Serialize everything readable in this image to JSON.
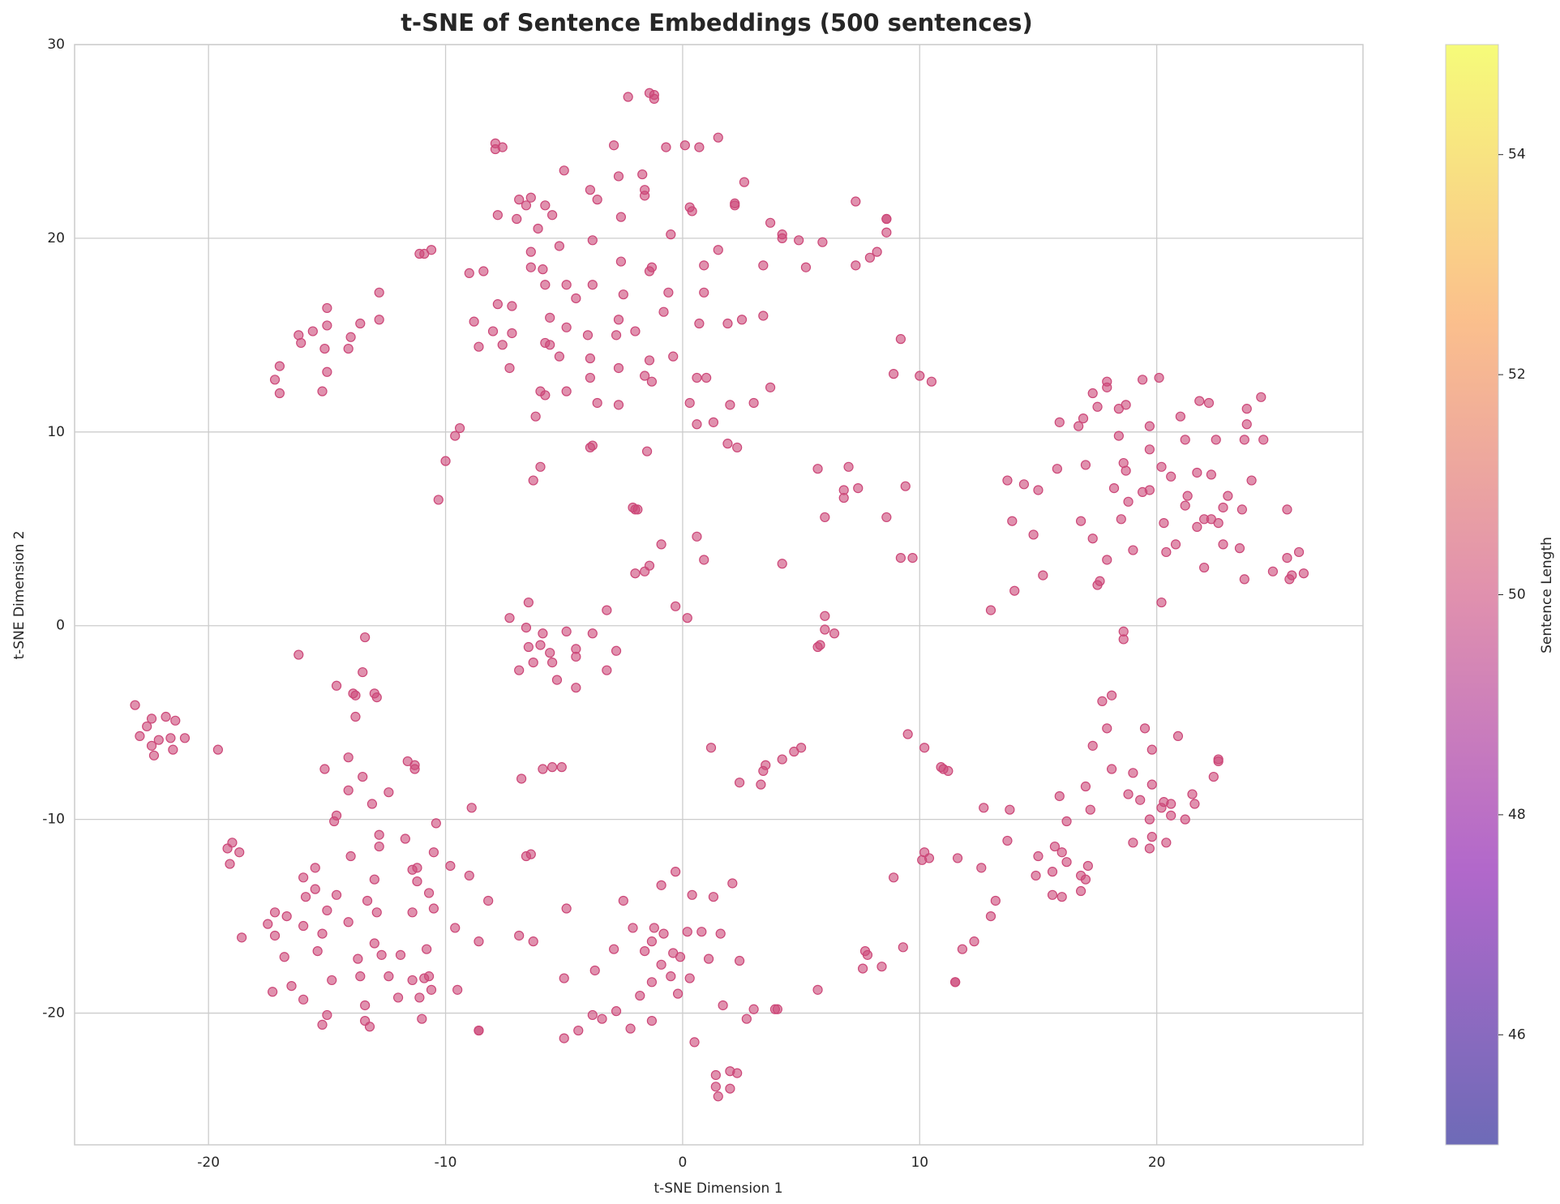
{
  "chart_data": {
    "type": "scatter",
    "title": "t-SNE of Sentence Embeddings (500 sentences)",
    "x_label": "t-SNE Dimension 1",
    "y_label": "t-SNE Dimension 2",
    "color": "#cc4778",
    "grid": true,
    "xlim": [
      -25.65,
      28.7
    ],
    "ylim": [
      -26.8,
      30
    ],
    "xticks": [
      -20,
      -10,
      0,
      10,
      20
    ],
    "yticks": [
      -20,
      -10,
      0,
      10,
      20,
      30
    ],
    "colorbar": {
      "label": "Sentence Length",
      "lim": [
        45,
        55
      ],
      "ticks": [
        46,
        48,
        50,
        52,
        54
      ],
      "colormap": "plasma"
    },
    "x": [
      -1.4,
      -1.2,
      -1.2,
      -2.3,
      -2.9,
      -0.7,
      0.1,
      0.7,
      1.5,
      -7.9,
      -7.9,
      -7.6,
      -5,
      -1.7,
      -2.7,
      2.6,
      -3.9,
      -1.6,
      -1.6,
      -3.6,
      -6.9,
      -6.6,
      -6.4,
      -5.8,
      -5.5,
      -7.0,
      -7.8,
      -2.6,
      0.3,
      0.4,
      2.2,
      2.2,
      3.7,
      7.3,
      8.6,
      8.6,
      -6.1,
      -0.5,
      4.2,
      4.2,
      4.9,
      8.6,
      5.9,
      -3.8,
      -5.2,
      -6.4,
      1.5,
      8.2,
      7.9,
      -9.0,
      -8.4,
      -6.4,
      -5.9,
      -2.6,
      -1.3,
      -1.4,
      0.9,
      3.4,
      5.2,
      7.3,
      -5.8,
      -4.9,
      -3.8,
      -4.5,
      -2.5,
      -0.6,
      0.9,
      -7.8,
      -7.2,
      -0.8,
      -8.8,
      -5.6,
      -2.7,
      2.5,
      3.4,
      -8.0,
      -7.2,
      -4.9,
      -4.0,
      -2.8,
      -2.0,
      0.7,
      1.9,
      -8.6,
      -7.6,
      -5.8,
      -5.6,
      -5.2,
      -3.9,
      -1.4,
      -0.4,
      -7.3,
      -2.7,
      -1.6,
      -3.9,
      -1.3,
      0.6,
      1.0,
      -6.0,
      -5.8,
      -4.9,
      3.7,
      -3.6,
      -2.7,
      0.3,
      2.0,
      3.0,
      -6.2,
      0.6,
      1.3,
      9.2,
      8.9,
      10.0,
      10.5,
      -11.1,
      -10.9,
      -10.6,
      -15.0,
      -12.8,
      -12.8,
      -13.6,
      -14.0,
      -15.6,
      -15.0,
      -16.2,
      -16.1,
      -15.1,
      -14.1,
      -17.0,
      -17.2,
      -15.0,
      -17.0,
      -15.2,
      -9.4,
      -9.6,
      -10.0,
      -10.3,
      -3.9,
      -3.8,
      -1.5,
      1.9,
      2.3,
      -6.0,
      -6.3,
      -2.1,
      -2.0,
      -1.9,
      0.6,
      -0.9,
      0.9,
      -1.4,
      -1.6,
      -2.0,
      4.2,
      5.7,
      7.0,
      6.8,
      6.8,
      7.4,
      6.0,
      8.6,
      9.4,
      9.2,
      9.7,
      -0.3,
      0.2,
      -3.2,
      -6.5,
      -7.3,
      -6.6,
      -5.9,
      -4.9,
      -3.8,
      -6.5,
      -6.0,
      -4.5,
      -5.6,
      -2.8,
      -6.9,
      -6.3,
      -5.5,
      -4.5,
      -3.2,
      -5.3,
      -4.5,
      6.0,
      6.0,
      6.4,
      5.8,
      5.7,
      -13.4,
      -16.2,
      -13.5,
      -14.6,
      -13.9,
      -13.8,
      -13.0,
      -12.9,
      -13.8,
      -14.1,
      -15.1,
      -11.6,
      -11.3,
      -11.3,
      -13.5,
      -14.1,
      -12.4,
      -13.1,
      -14.6,
      -14.7,
      -10.4,
      -8.9,
      -12.8,
      -11.7,
      -12.8,
      -10.5,
      -14.0,
      -11.2,
      -11.4,
      -9.8,
      -15.5,
      -9.0,
      -16.0,
      -13.0,
      -11.2,
      -15.5,
      -10.7,
      -15.9,
      -14.6,
      -13.3,
      -8.2,
      -10.5,
      -15.0,
      -17.2,
      -12.9,
      -11.4,
      -16.7,
      -14.1,
      -17.5,
      -16.0,
      -9.6,
      -15.2,
      -17.2,
      -18.6,
      -8.6,
      -13.0,
      -10.8,
      -15.4,
      -16.8,
      -12.7,
      -13.7,
      -11.9,
      -10.7,
      -10.9,
      -13.6,
      -12.4,
      -14.8,
      -11.4,
      -16.5,
      -10.6,
      -17.3,
      -9.5,
      -16.0,
      -12.0,
      -11.1,
      -13.4,
      -15.0,
      -13.4,
      -11.0,
      -15.2,
      -13.2,
      -8.6,
      -8.6,
      -19.2,
      -19.0,
      -18.7,
      -19.1,
      -19.6,
      -6.8,
      -5.9,
      -5.5,
      -5.1,
      -6.6,
      -6.4,
      -6.9,
      -6.3,
      -23.1,
      -22.9,
      -22.6,
      -22.4,
      -21.8,
      -21.4,
      -22.1,
      -21.6,
      -21.0,
      -22.4,
      -21.5,
      -22.3,
      1.2,
      3.5,
      3.4,
      4.2,
      4.7,
      5.0,
      2.4,
      3.3,
      -0.3,
      -0.9,
      2.1,
      0.4,
      1.3,
      -2.5,
      -4.9,
      -2.1,
      -1.2,
      0.8,
      0.2,
      1.6,
      -0.8,
      -1.3,
      -2.9,
      -1.6,
      -0.4,
      -0.1,
      1.1,
      2.4,
      -0.9,
      -3.7,
      -0.5,
      0.3,
      -1.3,
      -5.0,
      -0.2,
      -1.8,
      1.7,
      3.0,
      3.9,
      4.0,
      -2.8,
      5.7,
      -3.8,
      -3.4,
      -1.3,
      2.7,
      -4.4,
      -2.2,
      -5.0,
      0.5,
      2.0,
      2.3,
      1.4,
      1.4,
      2.0,
      1.5,
      9.5,
      10.2,
      10.9,
      11.0,
      11.2,
      12.7,
      13.8,
      13.7,
      10.2,
      10.1,
      10.4,
      11.6,
      12.6,
      8.9,
      13.2,
      13.0,
      12.3,
      11.8,
      9.3,
      7.7,
      7.8,
      7.6,
      8.4,
      11.5,
      11.5,
      15.0,
      15.7,
      16.0,
      16.2,
      15.6,
      14.9,
      16.8,
      17.1,
      17.0,
      16.8,
      15.6,
      16.0,
      16.2,
      17.2,
      15.9,
      17.7,
      18.1,
      17.9,
      17.3,
      18.1,
      17.0,
      18.8,
      19.0,
      19.5,
      19.8,
      20.9,
      22.6,
      22.6,
      22.4,
      19.8,
      19.3,
      20.3,
      20.6,
      21.5,
      20.2,
      20.6,
      21.2,
      21.6,
      19.7,
      19.8,
      19.0,
      20.4,
      19.7,
      18.6,
      18.6,
      13.0,
      14.0,
      15.2,
      17.5,
      17.6,
      20.2,
      23.7,
      24.9,
      25.6,
      25.7,
      26.2,
      26.0,
      25.5,
      23.5,
      22.8,
      22.0,
      20.8,
      20.4,
      19.0,
      17.9,
      17.3,
      14.8,
      16.8,
      18.5,
      20.3,
      21.7,
      22.0,
      22.3,
      22.6,
      22.8,
      23.0,
      23.6,
      25.5,
      13.9,
      13.7,
      14.4,
      15.0,
      15.8,
      17.0,
      18.2,
      18.8,
      19.4,
      19.7,
      18.7,
      18.6,
      20.2,
      20.6,
      21.2,
      21.3,
      21.7,
      22.3,
      24.0,
      19.7,
      18.4,
      15.9,
      16.7,
      16.9,
      17.5,
      18.4,
      18.7,
      17.9,
      17.9,
      17.3,
      19.4,
      20.1,
      21.0,
      19.7,
      21.2,
      22.5,
      23.7,
      24.5,
      23.8,
      23.8,
      24.4,
      21.8,
      22.2
    ],
    "y": [
      27.5,
      27.4,
      27.2,
      27.3,
      24.8,
      24.7,
      24.8,
      24.7,
      25.2,
      24.9,
      24.6,
      24.7,
      23.5,
      23.3,
      23.2,
      22.9,
      22.5,
      22.5,
      22.2,
      22,
      22,
      21.7,
      22.1,
      21.7,
      21.2,
      21.0,
      21.2,
      21.1,
      21.6,
      21.4,
      21.8,
      21.7,
      20.8,
      21.9,
      21.0,
      21.0,
      20.5,
      20.2,
      20.2,
      20.0,
      19.9,
      20.3,
      19.8,
      19.9,
      19.6,
      19.3,
      19.4,
      19.3,
      19.0,
      18.2,
      18.3,
      18.5,
      18.4,
      18.8,
      18.5,
      18.3,
      18.6,
      18.6,
      18.5,
      18.6,
      17.6,
      17.6,
      17.6,
      16.9,
      17.1,
      17.2,
      17.2,
      16.6,
      16.5,
      16.2,
      15.7,
      15.9,
      15.8,
      15.8,
      16.0,
      15.2,
      15.1,
      15.4,
      15.0,
      15.0,
      15.2,
      15.6,
      15.6,
      14.4,
      14.5,
      14.6,
      14.5,
      13.9,
      13.8,
      13.7,
      13.9,
      13.3,
      13.3,
      12.9,
      12.8,
      12.6,
      12.8,
      12.8,
      12.1,
      11.9,
      12.1,
      12.3,
      11.5,
      11.4,
      11.5,
      11.4,
      11.5,
      10.8,
      10.4,
      10.5,
      14.8,
      13.0,
      12.9,
      12.6,
      19.2,
      19.2,
      19.4,
      16.4,
      17.2,
      15.8,
      15.6,
      14.9,
      15.2,
      15.5,
      15.0,
      14.6,
      14.3,
      14.3,
      13.4,
      12.7,
      13.1,
      12.0,
      12.1,
      10.2,
      9.8,
      8.5,
      6.5,
      9.2,
      9.3,
      9.0,
      9.4,
      9.2,
      8.2,
      7.5,
      6.1,
      6.0,
      6.0,
      4.6,
      4.2,
      3.4,
      3.1,
      2.8,
      2.7,
      3.2,
      8.1,
      8.2,
      7.0,
      6.6,
      7.1,
      5.6,
      5.6,
      7.2,
      3.5,
      3.5,
      1.0,
      0.4,
      0.8,
      1.2,
      0.4,
      -0.1,
      -0.4,
      -0.3,
      -0.4,
      -1.1,
      -1.0,
      -1.2,
      -1.4,
      -1.3,
      -2.3,
      -1.9,
      -1.9,
      -1.6,
      -2.3,
      -2.8,
      -3.2,
      0.5,
      -0.2,
      -0.4,
      -1.0,
      -1.1,
      -0.6,
      -1.5,
      -2.4,
      -3.1,
      -3.5,
      -3.6,
      -3.5,
      -3.7,
      -4.7,
      -6.8,
      -7.4,
      -7.0,
      -7.2,
      -7.4,
      -7.8,
      -8.5,
      -8.6,
      -9.2,
      -9.8,
      -10.1,
      -10.2,
      -9.4,
      -10.8,
      -11.0,
      -11.4,
      -11.7,
      -11.9,
      -12.5,
      -12.6,
      -12.4,
      -12.5,
      -12.9,
      -13.0,
      -13.1,
      -13.2,
      -13.6,
      -13.8,
      -14.0,
      -13.9,
      -14.2,
      -14.2,
      -14.6,
      -14.7,
      -14.8,
      -14.8,
      -14.8,
      -15.0,
      -15.3,
      -15.4,
      -15.5,
      -15.6,
      -15.9,
      -16.0,
      -16.1,
      -16.3,
      -16.4,
      -16.7,
      -16.8,
      -17.1,
      -17.0,
      -17.2,
      -17.0,
      -18.1,
      -18.2,
      -18.1,
      -18.1,
      -18.3,
      -18.3,
      -18.6,
      -18.8,
      -18.9,
      -18.8,
      -19.3,
      -19.2,
      -19.2,
      -19.6,
      -20.1,
      -20.4,
      -20.3,
      -20.6,
      -20.7,
      -20.9,
      -20.9,
      -11.5,
      -11.2,
      -11.7,
      -12.3,
      -6.4,
      -7.9,
      -7.4,
      -7.3,
      -7.3,
      -11.9,
      -11.8,
      -16.0,
      -16.3,
      -4.1,
      -5.7,
      -5.2,
      -4.8,
      -4.7,
      -4.9,
      -5.9,
      -5.8,
      -5.8,
      -6.2,
      -6.4,
      -6.7,
      -6.3,
      -7.2,
      -7.5,
      -6.9,
      -6.5,
      -6.3,
      -8.1,
      -8.2,
      -12.7,
      -13.4,
      -13.3,
      -13.9,
      -14.0,
      -14.2,
      -14.6,
      -15.6,
      -15.6,
      -15.8,
      -15.8,
      -15.9,
      -15.9,
      -16.3,
      -16.7,
      -16.8,
      -16.9,
      -17.1,
      -17.2,
      -17.3,
      -17.5,
      -17.8,
      -18.1,
      -18.2,
      -18.4,
      -18.2,
      -19.0,
      -19.1,
      -19.6,
      -19.8,
      -19.8,
      -19.8,
      -19.9,
      -18.8,
      -20.1,
      -20.3,
      -20.4,
      -20.3,
      -20.9,
      -20.8,
      -21.3,
      -21.5,
      -23.0,
      -23.1,
      -23.2,
      -23.8,
      -23.9,
      -24.3,
      -5.6,
      -6.3,
      -7.3,
      -7.4,
      -7.5,
      -9.4,
      -9.5,
      -11.1,
      -11.7,
      -12.1,
      -12.0,
      -12.0,
      -12.5,
      -13.0,
      -14.2,
      -15.0,
      -16.3,
      -16.7,
      -16.6,
      -16.8,
      -17.0,
      -17.7,
      -17.6,
      -18.4,
      -18.4,
      -11.9,
      -11.4,
      -11.7,
      -12.2,
      -12.7,
      -12.9,
      -12.9,
      -12.4,
      -13.1,
      -13.7,
      -13.9,
      -14.0,
      -10.1,
      -9.5,
      -8.8,
      -3.9,
      -3.6,
      -5.3,
      -6.2,
      -7.4,
      -8.3,
      -8.7,
      -7.6,
      -5.3,
      -6.4,
      -5.7,
      -6.9,
      -7.0,
      -7.8,
      -8.2,
      -9.0,
      -9.1,
      -9.2,
      -8.7,
      -9.4,
      -9.8,
      -10.0,
      -9.2,
      -10.0,
      -10.9,
      -11.2,
      -11.2,
      -11.5,
      -0.3,
      -0.7,
      0.8,
      1.8,
      2.6,
      2.1,
      2.3,
      1.2,
      2.4,
      2.8,
      2.4,
      2.6,
      2.7,
      3.8,
      3.5,
      4.0,
      4.2,
      3.0,
      4.2,
      3.8,
      3.9,
      3.4,
      4.5,
      4.7,
      5.4,
      5.5,
      5.3,
      5.1,
      5.5,
      5.5,
      5.3,
      6.1,
      6.7,
      6.0,
      6.0,
      5.4,
      7.5,
      7.3,
      7.0,
      8.1,
      8.3,
      7.1,
      6.4,
      6.9,
      7.0,
      8.0,
      8.4,
      8.2,
      7.7,
      6.2,
      6.7,
      7.9,
      7.8,
      7.5,
      9.1,
      9.8,
      10.5,
      10.3,
      10.7,
      11.3,
      11.2,
      11.4,
      12.3,
      12.6,
      12.0,
      12.7,
      12.8,
      10.8,
      10.3,
      9.6,
      9.6,
      9.6,
      9.6,
      10.4,
      11.2,
      11.8,
      11.6,
      11.5
    ]
  }
}
